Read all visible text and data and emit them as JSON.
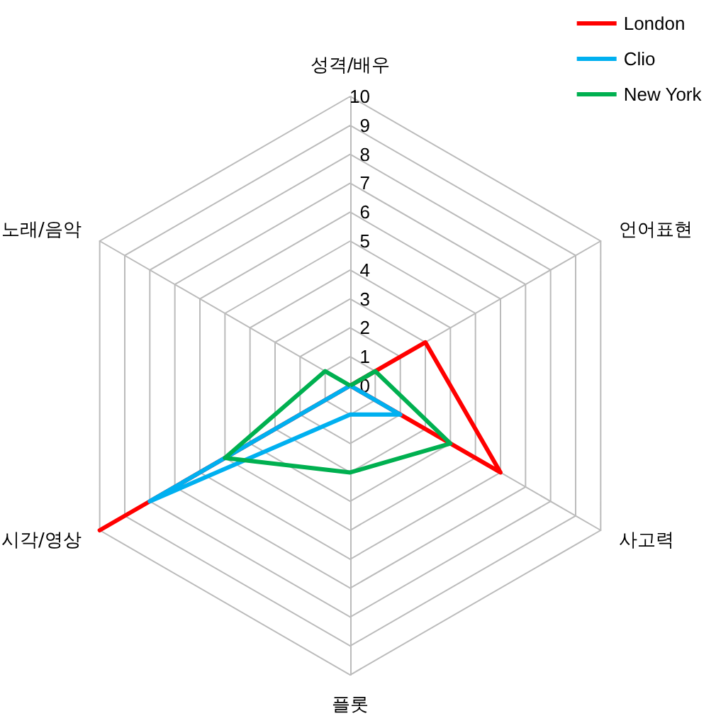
{
  "chart_data": {
    "type": "radar",
    "categories": [
      "성격/배우",
      "언어표현",
      "사고력",
      "플롯",
      "시각/영상",
      "노래/음악"
    ],
    "ylim": [
      0,
      10
    ],
    "yticks": [
      0,
      1,
      2,
      3,
      4,
      5,
      6,
      7,
      8,
      9,
      10
    ],
    "grid": true,
    "legend": "top right",
    "marker": "none",
    "line_style": "solid",
    "series": [
      {
        "name": "London",
        "color": "#ff0000",
        "values": [
          0,
          3,
          6,
          0,
          10,
          0
        ]
      },
      {
        "name": "Clio",
        "color": "#00b0f0",
        "values": [
          0,
          0,
          2,
          1,
          8,
          0
        ]
      },
      {
        "name": "New York",
        "color": "#00b050",
        "values": [
          0,
          1,
          4,
          3,
          5,
          1
        ]
      }
    ]
  }
}
